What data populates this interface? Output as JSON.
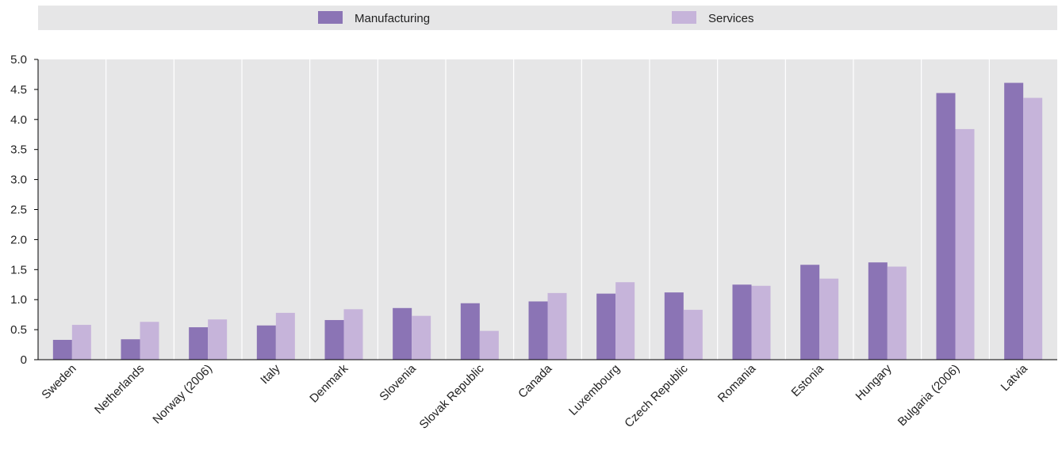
{
  "chart_data": {
    "type": "bar",
    "categories": [
      "Sweden",
      "Netherlands",
      "Norway (2006)",
      "Italy",
      "Denmark",
      "Slovenia",
      "Slovak Republic",
      "Canada",
      "Luxembourg",
      "Czech Republic",
      "Romania",
      "Estonia",
      "Hungary",
      "Bulgaria  (2006)",
      "Latvia"
    ],
    "series": [
      {
        "name": "Manufacturing",
        "color": "#8b74b5",
        "values": [
          0.33,
          0.34,
          0.54,
          0.57,
          0.66,
          0.86,
          0.94,
          0.97,
          1.1,
          1.12,
          1.25,
          1.58,
          1.62,
          4.44,
          4.61
        ]
      },
      {
        "name": "Services",
        "color": "#c6b4da",
        "values": [
          0.58,
          0.63,
          0.67,
          0.78,
          0.84,
          0.73,
          0.48,
          1.11,
          1.29,
          0.83,
          1.23,
          1.35,
          1.55,
          3.84,
          4.36
        ]
      }
    ],
    "ylim": [
      0,
      5
    ],
    "yticks": [
      {
        "value": 0,
        "label": "0"
      },
      {
        "value": 0.5,
        "label": "0.5"
      },
      {
        "value": 1.0,
        "label": "1.0"
      },
      {
        "value": 1.5,
        "label": "1.5"
      },
      {
        "value": 2.0,
        "label": "2.0"
      },
      {
        "value": 2.5,
        "label": "2.5"
      },
      {
        "value": 3.0,
        "label": "3.0"
      },
      {
        "value": 3.5,
        "label": "3.5"
      },
      {
        "value": 4.0,
        "label": "4.0"
      },
      {
        "value": 4.5,
        "label": "4.5"
      },
      {
        "value": 5.0,
        "label": "5.0"
      }
    ],
    "legend_position": "top",
    "grid": true,
    "plot_background": "#e6e6e7"
  }
}
